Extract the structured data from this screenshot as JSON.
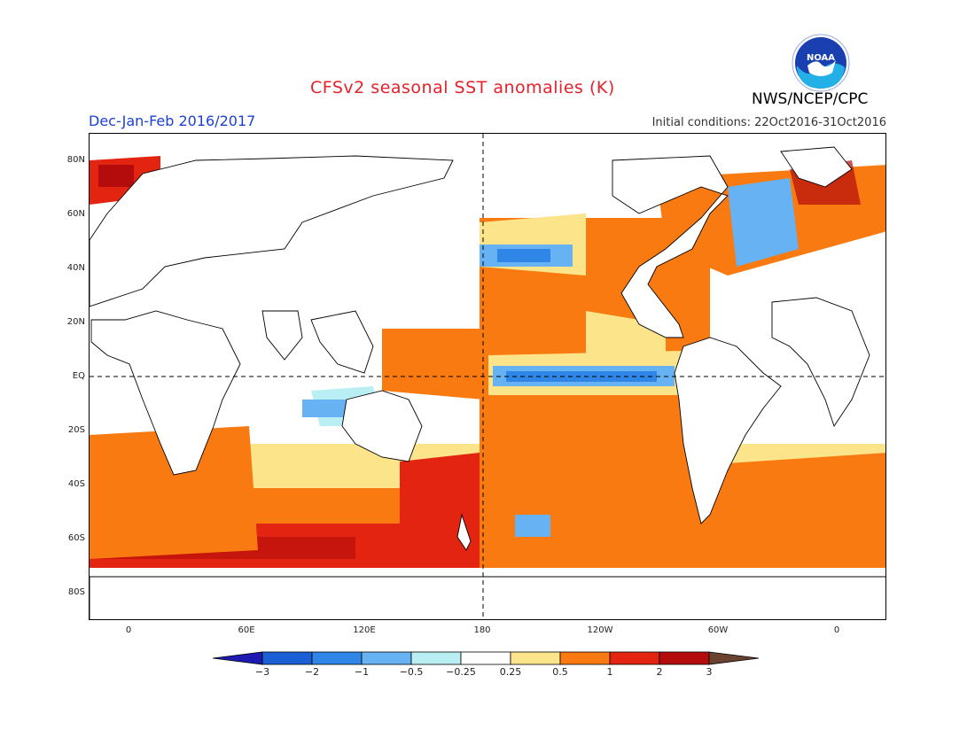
{
  "header": {
    "title": "CFSv2 seasonal SST anomalies (K)",
    "season": "Dec-Jan-Feb 2016/2017",
    "initial_conditions": "Initial conditions: 22Oct2016-31Oct2016",
    "agency": "NWS/NCEP/CPC",
    "logo_text": "NOAA"
  },
  "map": {
    "lat_labels": [
      "80N",
      "60N",
      "40N",
      "20N",
      "EQ",
      "20S",
      "40S",
      "60S",
      "80S"
    ],
    "lon_labels": [
      "0",
      "60E",
      "120E",
      "180",
      "120W",
      "60W",
      "0"
    ]
  },
  "colorbar": {
    "labels": [
      "-3",
      "-2",
      "-1",
      "-0.5",
      "-0.25",
      "0.25",
      "0.5",
      "1",
      "2",
      "3"
    ],
    "colors": [
      "#1f1bb2",
      "#1a5fd4",
      "#2f86e6",
      "#66b2f2",
      "#b9eef5",
      "#ffffff",
      "#fbe48a",
      "#f97a10",
      "#e22410",
      "#b40c0c",
      "#6a4230"
    ]
  },
  "colors": {
    "title": "#e8202a",
    "season": "#1c3fd8",
    "land": "#ffffff",
    "ocean_neutral": "#ffffff",
    "warm_1": "#fbe48a",
    "warm_2": "#f97a10",
    "warm_3": "#e22410",
    "warm_4": "#b40c0c",
    "cool_1": "#b9eef5",
    "cool_2": "#66b2f2",
    "cool_3": "#2f86e6"
  }
}
